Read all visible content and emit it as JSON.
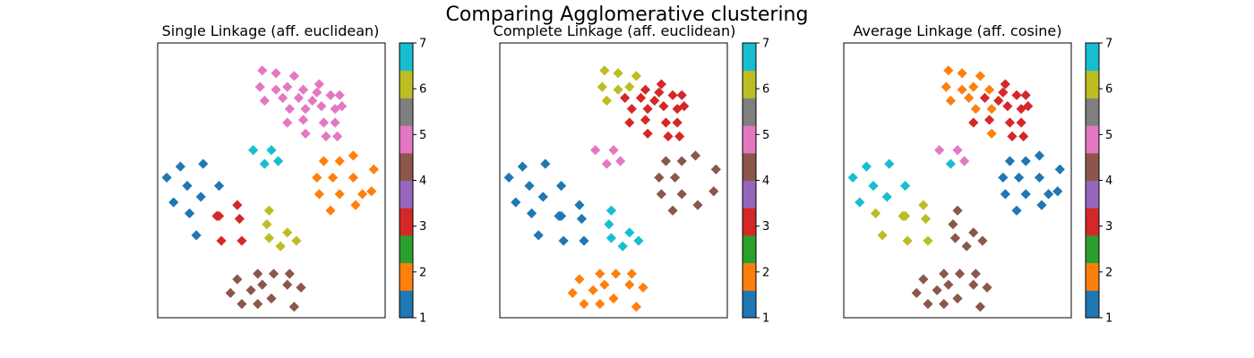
{
  "title": "Comparing Agglomerative clustering",
  "colors": [
    "#1f77b4",
    "#ff7f0e",
    "#2ca02c",
    "#d62728",
    "#9467bd",
    "#8c564b",
    "#e377c2",
    "#7f7f7f",
    "#bcbd22",
    "#17becf"
  ],
  "chart_data": [
    {
      "type": "scatter",
      "title": "Single Linkage (aff. euclidean)",
      "xlim": [
        0,
        100
      ],
      "ylim": [
        0,
        100
      ],
      "colorbar": {
        "ticks": [
          1,
          2,
          3,
          4,
          5,
          6,
          7
        ]
      },
      "points": [
        {
          "x": 46,
          "y": 90,
          "c": 5
        },
        {
          "x": 52,
          "y": 89,
          "c": 5
        },
        {
          "x": 60,
          "y": 88,
          "c": 5
        },
        {
          "x": 45,
          "y": 84,
          "c": 5
        },
        {
          "x": 52,
          "y": 83,
          "c": 5
        },
        {
          "x": 57,
          "y": 84,
          "c": 5
        },
        {
          "x": 64,
          "y": 83,
          "c": 5
        },
        {
          "x": 70,
          "y": 82,
          "c": 5
        },
        {
          "x": 47,
          "y": 79,
          "c": 5
        },
        {
          "x": 55,
          "y": 80,
          "c": 5
        },
        {
          "x": 62,
          "y": 80,
          "c": 5
        },
        {
          "x": 68,
          "y": 79,
          "c": 5
        },
        {
          "x": 71,
          "y": 85,
          "c": 5
        },
        {
          "x": 58,
          "y": 76,
          "c": 5
        },
        {
          "x": 65,
          "y": 76,
          "c": 5
        },
        {
          "x": 72,
          "y": 77,
          "c": 5
        },
        {
          "x": 76,
          "y": 81,
          "c": 5
        },
        {
          "x": 80,
          "y": 81,
          "c": 5
        },
        {
          "x": 57,
          "y": 71,
          "c": 5
        },
        {
          "x": 64,
          "y": 72,
          "c": 5
        },
        {
          "x": 73,
          "y": 71,
          "c": 5
        },
        {
          "x": 78,
          "y": 76,
          "c": 5
        },
        {
          "x": 81,
          "y": 77,
          "c": 5
        },
        {
          "x": 65,
          "y": 67,
          "c": 5
        },
        {
          "x": 78,
          "y": 71,
          "c": 5
        },
        {
          "x": 74,
          "y": 66,
          "c": 5
        },
        {
          "x": 79,
          "y": 66,
          "c": 5
        },
        {
          "x": 42,
          "y": 61,
          "c": 7
        },
        {
          "x": 50,
          "y": 61,
          "c": 7
        },
        {
          "x": 47,
          "y": 56,
          "c": 7
        },
        {
          "x": 53,
          "y": 57,
          "c": 7
        },
        {
          "x": 10,
          "y": 55,
          "c": 1
        },
        {
          "x": 20,
          "y": 56,
          "c": 1
        },
        {
          "x": 4,
          "y": 51,
          "c": 1
        },
        {
          "x": 13,
          "y": 48,
          "c": 1
        },
        {
          "x": 27,
          "y": 48,
          "c": 1
        },
        {
          "x": 19,
          "y": 44,
          "c": 1
        },
        {
          "x": 7,
          "y": 42,
          "c": 1
        },
        {
          "x": 14,
          "y": 38,
          "c": 1
        },
        {
          "x": 17,
          "y": 30,
          "c": 1
        },
        {
          "x": 35,
          "y": 41,
          "c": 3
        },
        {
          "x": 26,
          "y": 37,
          "c": 3
        },
        {
          "x": 27,
          "y": 37,
          "c": 3
        },
        {
          "x": 36,
          "y": 36,
          "c": 3
        },
        {
          "x": 28,
          "y": 28,
          "c": 3
        },
        {
          "x": 37,
          "y": 28,
          "c": 3
        },
        {
          "x": 73,
          "y": 57,
          "c": 2
        },
        {
          "x": 80,
          "y": 57,
          "c": 2
        },
        {
          "x": 86,
          "y": 59,
          "c": 2
        },
        {
          "x": 95,
          "y": 54,
          "c": 2
        },
        {
          "x": 70,
          "y": 51,
          "c": 2
        },
        {
          "x": 77,
          "y": 51,
          "c": 2
        },
        {
          "x": 86,
          "y": 51,
          "c": 2
        },
        {
          "x": 71,
          "y": 45,
          "c": 2
        },
        {
          "x": 80,
          "y": 45,
          "c": 2
        },
        {
          "x": 90,
          "y": 45,
          "c": 2
        },
        {
          "x": 94,
          "y": 46,
          "c": 2
        },
        {
          "x": 76,
          "y": 39,
          "c": 2
        },
        {
          "x": 87,
          "y": 41,
          "c": 2
        },
        {
          "x": 49,
          "y": 39,
          "c": 6
        },
        {
          "x": 48,
          "y": 34,
          "c": 6
        },
        {
          "x": 49,
          "y": 29,
          "c": 6
        },
        {
          "x": 57,
          "y": 31,
          "c": 6
        },
        {
          "x": 61,
          "y": 28,
          "c": 6
        },
        {
          "x": 54,
          "y": 26,
          "c": 6
        },
        {
          "x": 44,
          "y": 16,
          "c": 4
        },
        {
          "x": 51,
          "y": 16,
          "c": 4
        },
        {
          "x": 58,
          "y": 16,
          "c": 4
        },
        {
          "x": 35,
          "y": 14,
          "c": 4
        },
        {
          "x": 41,
          "y": 10,
          "c": 4
        },
        {
          "x": 46,
          "y": 12,
          "c": 4
        },
        {
          "x": 57,
          "y": 12,
          "c": 4
        },
        {
          "x": 63,
          "y": 11,
          "c": 4
        },
        {
          "x": 32,
          "y": 9,
          "c": 4
        },
        {
          "x": 37,
          "y": 5,
          "c": 4
        },
        {
          "x": 44,
          "y": 5,
          "c": 4
        },
        {
          "x": 50,
          "y": 7,
          "c": 4
        },
        {
          "x": 60,
          "y": 4,
          "c": 4
        }
      ]
    },
    {
      "type": "scatter",
      "title": "Complete Linkage (aff. euclidean)",
      "xlim": [
        0,
        100
      ],
      "ylim": [
        0,
        100
      ],
      "colorbar": {
        "ticks": [
          1,
          2,
          3,
          4,
          5,
          6,
          7
        ]
      },
      "points": [
        {
          "x": 46,
          "y": 90,
          "c": 6
        },
        {
          "x": 52,
          "y": 89,
          "c": 6
        },
        {
          "x": 60,
          "y": 88,
          "c": 6
        },
        {
          "x": 45,
          "y": 84,
          "c": 6
        },
        {
          "x": 52,
          "y": 83,
          "c": 6
        },
        {
          "x": 57,
          "y": 84,
          "c": 6
        },
        {
          "x": 47,
          "y": 79,
          "c": 6
        },
        {
          "x": 64,
          "y": 83,
          "c": 3
        },
        {
          "x": 70,
          "y": 82,
          "c": 3
        },
        {
          "x": 55,
          "y": 80,
          "c": 3
        },
        {
          "x": 62,
          "y": 80,
          "c": 3
        },
        {
          "x": 68,
          "y": 79,
          "c": 3
        },
        {
          "x": 71,
          "y": 85,
          "c": 3
        },
        {
          "x": 58,
          "y": 76,
          "c": 3
        },
        {
          "x": 65,
          "y": 76,
          "c": 3
        },
        {
          "x": 72,
          "y": 77,
          "c": 3
        },
        {
          "x": 76,
          "y": 81,
          "c": 3
        },
        {
          "x": 80,
          "y": 81,
          "c": 3
        },
        {
          "x": 57,
          "y": 71,
          "c": 3
        },
        {
          "x": 64,
          "y": 72,
          "c": 3
        },
        {
          "x": 73,
          "y": 71,
          "c": 3
        },
        {
          "x": 78,
          "y": 76,
          "c": 3
        },
        {
          "x": 81,
          "y": 77,
          "c": 3
        },
        {
          "x": 65,
          "y": 67,
          "c": 3
        },
        {
          "x": 78,
          "y": 71,
          "c": 3
        },
        {
          "x": 74,
          "y": 66,
          "c": 3
        },
        {
          "x": 79,
          "y": 66,
          "c": 3
        },
        {
          "x": 42,
          "y": 61,
          "c": 5
        },
        {
          "x": 50,
          "y": 61,
          "c": 5
        },
        {
          "x": 47,
          "y": 56,
          "c": 5
        },
        {
          "x": 53,
          "y": 57,
          "c": 5
        },
        {
          "x": 10,
          "y": 55,
          "c": 1
        },
        {
          "x": 20,
          "y": 56,
          "c": 1
        },
        {
          "x": 4,
          "y": 51,
          "c": 1
        },
        {
          "x": 13,
          "y": 48,
          "c": 1
        },
        {
          "x": 27,
          "y": 48,
          "c": 1
        },
        {
          "x": 19,
          "y": 44,
          "c": 1
        },
        {
          "x": 7,
          "y": 42,
          "c": 1
        },
        {
          "x": 14,
          "y": 38,
          "c": 1
        },
        {
          "x": 17,
          "y": 30,
          "c": 1
        },
        {
          "x": 35,
          "y": 41,
          "c": 1
        },
        {
          "x": 26,
          "y": 37,
          "c": 1
        },
        {
          "x": 27,
          "y": 37,
          "c": 1
        },
        {
          "x": 36,
          "y": 36,
          "c": 1
        },
        {
          "x": 28,
          "y": 28,
          "c": 1
        },
        {
          "x": 37,
          "y": 28,
          "c": 1
        },
        {
          "x": 73,
          "y": 57,
          "c": 4
        },
        {
          "x": 80,
          "y": 57,
          "c": 4
        },
        {
          "x": 86,
          "y": 59,
          "c": 4
        },
        {
          "x": 95,
          "y": 54,
          "c": 4
        },
        {
          "x": 70,
          "y": 51,
          "c": 4
        },
        {
          "x": 77,
          "y": 51,
          "c": 4
        },
        {
          "x": 71,
          "y": 45,
          "c": 4
        },
        {
          "x": 80,
          "y": 45,
          "c": 4
        },
        {
          "x": 94,
          "y": 46,
          "c": 4
        },
        {
          "x": 76,
          "y": 39,
          "c": 4
        },
        {
          "x": 87,
          "y": 41,
          "c": 4
        },
        {
          "x": 49,
          "y": 39,
          "c": 7
        },
        {
          "x": 48,
          "y": 34,
          "c": 7
        },
        {
          "x": 49,
          "y": 29,
          "c": 7
        },
        {
          "x": 57,
          "y": 31,
          "c": 7
        },
        {
          "x": 61,
          "y": 28,
          "c": 7
        },
        {
          "x": 54,
          "y": 26,
          "c": 7
        },
        {
          "x": 44,
          "y": 16,
          "c": 2
        },
        {
          "x": 51,
          "y": 16,
          "c": 2
        },
        {
          "x": 58,
          "y": 16,
          "c": 2
        },
        {
          "x": 35,
          "y": 14,
          "c": 2
        },
        {
          "x": 41,
          "y": 10,
          "c": 2
        },
        {
          "x": 46,
          "y": 12,
          "c": 2
        },
        {
          "x": 57,
          "y": 12,
          "c": 2
        },
        {
          "x": 63,
          "y": 11,
          "c": 2
        },
        {
          "x": 32,
          "y": 9,
          "c": 2
        },
        {
          "x": 37,
          "y": 5,
          "c": 2
        },
        {
          "x": 44,
          "y": 5,
          "c": 2
        },
        {
          "x": 50,
          "y": 7,
          "c": 2
        },
        {
          "x": 60,
          "y": 4,
          "c": 2
        }
      ]
    },
    {
      "type": "scatter",
      "title": "Average Linkage (aff. cosine)",
      "xlim": [
        0,
        100
      ],
      "ylim": [
        0,
        100
      ],
      "colorbar": {
        "ticks": [
          1,
          2,
          3,
          4,
          5,
          6,
          7
        ]
      },
      "points": [
        {
          "x": 46,
          "y": 90,
          "c": 2
        },
        {
          "x": 52,
          "y": 89,
          "c": 2
        },
        {
          "x": 60,
          "y": 88,
          "c": 2
        },
        {
          "x": 45,
          "y": 84,
          "c": 2
        },
        {
          "x": 52,
          "y": 83,
          "c": 2
        },
        {
          "x": 57,
          "y": 84,
          "c": 2
        },
        {
          "x": 47,
          "y": 79,
          "c": 2
        },
        {
          "x": 58,
          "y": 76,
          "c": 2
        },
        {
          "x": 64,
          "y": 83,
          "c": 2
        },
        {
          "x": 55,
          "y": 80,
          "c": 2
        },
        {
          "x": 65,
          "y": 76,
          "c": 2
        },
        {
          "x": 65,
          "y": 67,
          "c": 2
        },
        {
          "x": 70,
          "y": 82,
          "c": 3
        },
        {
          "x": 62,
          "y": 80,
          "c": 3
        },
        {
          "x": 68,
          "y": 79,
          "c": 3
        },
        {
          "x": 71,
          "y": 85,
          "c": 3
        },
        {
          "x": 72,
          "y": 77,
          "c": 3
        },
        {
          "x": 76,
          "y": 81,
          "c": 3
        },
        {
          "x": 80,
          "y": 81,
          "c": 3
        },
        {
          "x": 73,
          "y": 71,
          "c": 3
        },
        {
          "x": 78,
          "y": 76,
          "c": 3
        },
        {
          "x": 81,
          "y": 77,
          "c": 3
        },
        {
          "x": 78,
          "y": 71,
          "c": 3
        },
        {
          "x": 74,
          "y": 66,
          "c": 3
        },
        {
          "x": 79,
          "y": 66,
          "c": 3
        },
        {
          "x": 57,
          "y": 71,
          "c": 3
        },
        {
          "x": 64,
          "y": 72,
          "c": 3
        },
        {
          "x": 42,
          "y": 61,
          "c": 5
        },
        {
          "x": 50,
          "y": 61,
          "c": 5
        },
        {
          "x": 53,
          "y": 57,
          "c": 5
        },
        {
          "x": 47,
          "y": 56,
          "c": 7
        },
        {
          "x": 10,
          "y": 55,
          "c": 7
        },
        {
          "x": 20,
          "y": 56,
          "c": 7
        },
        {
          "x": 4,
          "y": 51,
          "c": 7
        },
        {
          "x": 13,
          "y": 48,
          "c": 7
        },
        {
          "x": 27,
          "y": 48,
          "c": 7
        },
        {
          "x": 19,
          "y": 44,
          "c": 7
        },
        {
          "x": 7,
          "y": 42,
          "c": 7
        },
        {
          "x": 14,
          "y": 38,
          "c": 6
        },
        {
          "x": 17,
          "y": 30,
          "c": 6
        },
        {
          "x": 26,
          "y": 37,
          "c": 6
        },
        {
          "x": 27,
          "y": 37,
          "c": 6
        },
        {
          "x": 36,
          "y": 36,
          "c": 6
        },
        {
          "x": 28,
          "y": 28,
          "c": 6
        },
        {
          "x": 37,
          "y": 28,
          "c": 6
        },
        {
          "x": 35,
          "y": 41,
          "c": 6
        },
        {
          "x": 73,
          "y": 57,
          "c": 1
        },
        {
          "x": 80,
          "y": 57,
          "c": 1
        },
        {
          "x": 86,
          "y": 59,
          "c": 1
        },
        {
          "x": 95,
          "y": 54,
          "c": 1
        },
        {
          "x": 70,
          "y": 51,
          "c": 1
        },
        {
          "x": 77,
          "y": 51,
          "c": 1
        },
        {
          "x": 86,
          "y": 51,
          "c": 1
        },
        {
          "x": 71,
          "y": 45,
          "c": 1
        },
        {
          "x": 80,
          "y": 45,
          "c": 1
        },
        {
          "x": 90,
          "y": 45,
          "c": 1
        },
        {
          "x": 94,
          "y": 46,
          "c": 1
        },
        {
          "x": 76,
          "y": 39,
          "c": 1
        },
        {
          "x": 87,
          "y": 41,
          "c": 1
        },
        {
          "x": 50,
          "y": 39,
          "c": 4
        },
        {
          "x": 48,
          "y": 34,
          "c": 4
        },
        {
          "x": 49,
          "y": 29,
          "c": 4
        },
        {
          "x": 57,
          "y": 31,
          "c": 4
        },
        {
          "x": 61,
          "y": 28,
          "c": 4
        },
        {
          "x": 54,
          "y": 26,
          "c": 4
        },
        {
          "x": 44,
          "y": 16,
          "c": 4
        },
        {
          "x": 51,
          "y": 16,
          "c": 4
        },
        {
          "x": 58,
          "y": 16,
          "c": 4
        },
        {
          "x": 35,
          "y": 14,
          "c": 4
        },
        {
          "x": 41,
          "y": 10,
          "c": 4
        },
        {
          "x": 46,
          "y": 12,
          "c": 4
        },
        {
          "x": 57,
          "y": 12,
          "c": 4
        },
        {
          "x": 63,
          "y": 11,
          "c": 4
        },
        {
          "x": 32,
          "y": 9,
          "c": 4
        },
        {
          "x": 37,
          "y": 5,
          "c": 4
        },
        {
          "x": 44,
          "y": 5,
          "c": 4
        },
        {
          "x": 50,
          "y": 7,
          "c": 4
        },
        {
          "x": 60,
          "y": 4,
          "c": 4
        }
      ]
    }
  ]
}
